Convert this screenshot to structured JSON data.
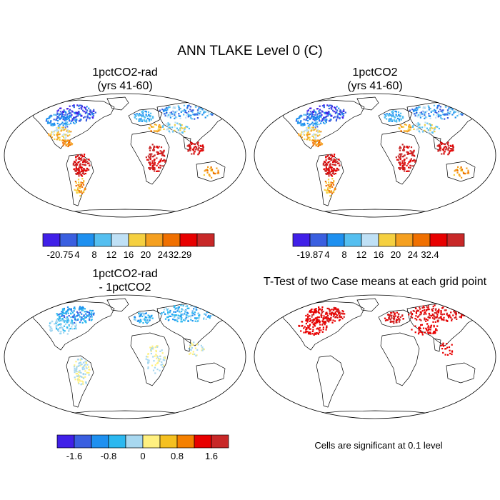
{
  "figure": {
    "title": "ANN TLAKE Level 0 (C)"
  },
  "panels": [
    {
      "id": "p1",
      "title_line1": "1pctCO2-rad",
      "title_line2": "(yrs 41-60)",
      "colorbar": {
        "labels": [
          "-20.75",
          "4",
          "8",
          "12",
          "16",
          "20",
          "24",
          "32.29"
        ],
        "colors": [
          "#4020e8",
          "#3a5fe0",
          "#1e90f0",
          "#55bff0",
          "#bfe0f5",
          "#f5d040",
          "#f5a020",
          "#f07000",
          "#e80000",
          "#c82828"
        ]
      }
    },
    {
      "id": "p2",
      "title_line1": "1pctCO2",
      "title_line2": "(yrs 41-60)",
      "colorbar": {
        "labels": [
          "-19.87",
          "4",
          "8",
          "12",
          "16",
          "20",
          "24",
          "32.4"
        ],
        "colors": [
          "#4020e8",
          "#3a5fe0",
          "#1e90f0",
          "#55bff0",
          "#bfe0f5",
          "#f5d040",
          "#f5a020",
          "#f07000",
          "#e80000",
          "#c82828"
        ]
      }
    },
    {
      "id": "p3",
      "title_line1": "1pctCO2-rad",
      "title_line2": "- 1pctCO2",
      "colorbar": {
        "labels": [
          "-1.6",
          "-0.8",
          "0",
          "0.8",
          "1.6"
        ],
        "colors": [
          "#4020e8",
          "#3a5fe0",
          "#1e90f0",
          "#2cb8f0",
          "#a8d8f0",
          "#fff080",
          "#f5c020",
          "#f58000",
          "#e80000",
          "#c82828"
        ]
      }
    },
    {
      "id": "p4",
      "title_line1": "T-Test of two Case means at each grid point",
      "note": "Cells are significant at 0.1 level"
    }
  ]
}
